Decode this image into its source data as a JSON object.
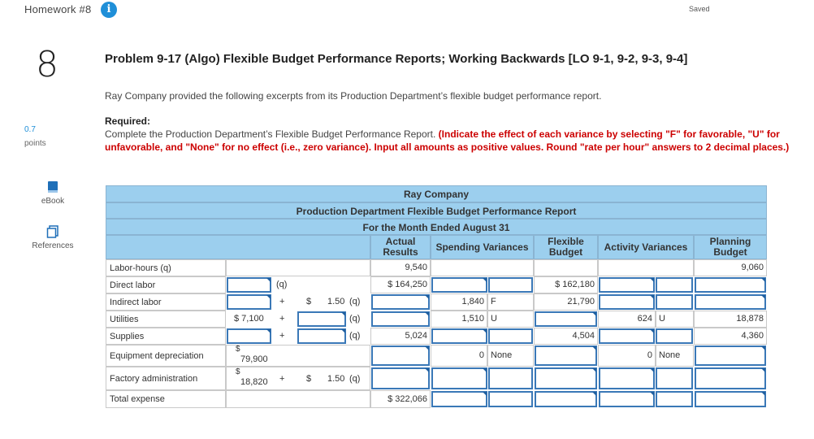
{
  "header": {
    "homework_title": "Homework #8",
    "info_icon": "info-icon",
    "saved_status": "Saved"
  },
  "sidebar": {
    "question_number": "8",
    "points_value": "0.7",
    "points_label": "points",
    "ebook_label": "eBook",
    "references_label": "References"
  },
  "problem": {
    "title": "Problem 9-17 (Algo) Flexible Budget Performance Reports; Working Backwards [LO 9-1, 9-2, 9-3, 9-4]",
    "intro": "Ray Company provided the following excerpts from its Production Department’s flexible budget performance report.",
    "required_label": "Required:",
    "required_text": "Complete the Production Department’s Flexible Budget Performance Report. ",
    "required_instructions": "(Indicate the effect of each variance by selecting \"F\" for favorable, \"U\" for unfavorable, and \"None\" for no effect (i.e., zero variance). Input all amounts as positive values. Round \"rate per hour\" answers to 2 decimal places.)"
  },
  "report": {
    "company": "Ray Company",
    "title": "Production Department Flexible Budget Performance Report",
    "period": "For the Month Ended August 31",
    "columns": {
      "actual": "Actual Results",
      "spending": "Spending Variances",
      "flexible": "Flexible Budget",
      "activity": "Activity Variances",
      "planning": "Planning Budget"
    },
    "rows": {
      "labor_hours": {
        "label": "Labor-hours (q)",
        "actual": "9,540",
        "planning": "9,060"
      },
      "direct_labor": {
        "label": "Direct labor",
        "q": "(q)",
        "actual": "$ 164,250",
        "flexible": "$ 162,180"
      },
      "indirect_labor": {
        "label": "Indirect labor",
        "plus": "+",
        "dollar": "$",
        "rate": "1.50",
        "q": "(q)",
        "spending": "1,840",
        "spending_eff": "F",
        "flexible": "21,790"
      },
      "utilities": {
        "label": "Utilities",
        "fixed": "$ 7,100",
        "plus": "+",
        "q": "(q)",
        "spending": "1,510",
        "spending_eff": "U",
        "activity": "624",
        "activity_eff": "U",
        "planning": "18,878"
      },
      "supplies": {
        "label": "Supplies",
        "plus": "+",
        "q": "(q)",
        "actual": "5,024",
        "flexible": "4,504",
        "planning": "4,360"
      },
      "equipment": {
        "label": "Equipment depreciation",
        "dollar": "$",
        "fixed": "79,900",
        "spending": "0",
        "spending_eff": "None",
        "activity": "0",
        "activity_eff": "None"
      },
      "factory_admin": {
        "label": "Factory administration",
        "dollar": "$",
        "fixed": "18,820",
        "plus": "+",
        "dollar2": "$",
        "rate": "1.50",
        "q": "(q)"
      },
      "total": {
        "label": "Total expense",
        "actual": "$ 322,066"
      }
    }
  }
}
